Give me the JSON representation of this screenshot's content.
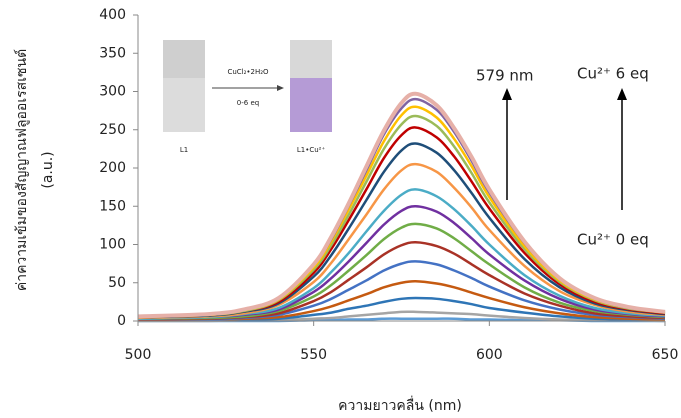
{
  "chart_data": {
    "type": "line",
    "y_label": [
      "ค่าความเข้มของสัญญาณฟลูออเรสเซนต์",
      "(a.u.)"
    ],
    "x_label": "ความยาวคลื่น (nm)",
    "x": [
      500,
      520,
      530,
      540,
      550,
      555,
      560,
      565,
      570,
      575,
      579,
      585,
      590,
      595,
      600,
      610,
      620,
      630,
      640,
      650
    ],
    "xlim": [
      500,
      650
    ],
    "xticks": [
      500,
      550,
      600,
      650
    ],
    "ylim": [
      0,
      400
    ],
    "yticks": [
      0,
      50,
      100,
      150,
      200,
      250,
      300,
      350,
      400
    ],
    "annotations": [
      "579 nm",
      "Cu²⁺ 6 eq",
      "Cu²⁺ 0 eq"
    ],
    "inset": {
      "reagent": "CuCl₂•2H₂O",
      "range": "0-6 eq",
      "left": "L1",
      "right": "L1•Cu²⁺"
    },
    "series": [
      {
        "color": "#5b9bd5",
        "values": [
          0,
          0,
          0,
          0,
          1,
          1,
          2,
          2,
          3,
          3,
          3,
          3,
          3,
          2,
          2,
          1,
          1,
          0,
          0,
          0
        ]
      },
      {
        "color": "#a5a5a5",
        "values": [
          0,
          0,
          1,
          1,
          3,
          4,
          6,
          8,
          10,
          12,
          12,
          11,
          10,
          9,
          7,
          4,
          2,
          1,
          1,
          0
        ]
      },
      {
        "color": "#2e75b6",
        "values": [
          1,
          1,
          2,
          3,
          8,
          11,
          16,
          20,
          25,
          29,
          30,
          29,
          26,
          22,
          17,
          11,
          6,
          3,
          2,
          1
        ]
      },
      {
        "color": "#c55a11",
        "values": [
          1,
          2,
          3,
          5,
          13,
          19,
          27,
          35,
          44,
          50,
          52,
          49,
          44,
          37,
          30,
          18,
          10,
          5,
          3,
          2
        ]
      },
      {
        "color": "#4472c4",
        "values": [
          2,
          2,
          4,
          8,
          20,
          29,
          41,
          53,
          66,
          75,
          78,
          74,
          66,
          56,
          45,
          27,
          15,
          8,
          5,
          3
        ]
      },
      {
        "color": "#a93226",
        "values": [
          2,
          3,
          5,
          10,
          26,
          38,
          54,
          70,
          87,
          99,
          103,
          98,
          88,
          74,
          60,
          36,
          20,
          10,
          6,
          4
        ]
      },
      {
        "color": "#70ad47",
        "values": [
          3,
          4,
          6,
          13,
          32,
          47,
          66,
          86,
          107,
          122,
          127,
          121,
          108,
          91,
          74,
          44,
          24,
          13,
          8,
          5
        ]
      },
      {
        "color": "#7030a0",
        "values": [
          3,
          5,
          8,
          15,
          38,
          56,
          78,
          102,
          126,
          144,
          150,
          143,
          128,
          108,
          87,
          53,
          29,
          15,
          9,
          6
        ]
      },
      {
        "color": "#4bacc6",
        "values": [
          3,
          5,
          9,
          17,
          43,
          64,
          89,
          117,
          144,
          165,
          172,
          163,
          146,
          124,
          100,
          60,
          33,
          17,
          10,
          7
        ]
      },
      {
        "color": "#f79646",
        "values": [
          4,
          6,
          10,
          21,
          51,
          76,
          107,
          139,
          172,
          197,
          205,
          195,
          174,
          148,
          119,
          72,
          39,
          21,
          12,
          8
        ]
      },
      {
        "color": "#1f4e79",
        "values": [
          5,
          7,
          12,
          23,
          58,
          86,
          121,
          158,
          195,
          223,
          232,
          220,
          197,
          167,
          135,
          81,
          44,
          23,
          14,
          9
        ]
      },
      {
        "color": "#c00000",
        "values": [
          5,
          8,
          13,
          25,
          63,
          94,
          132,
          172,
          213,
          243,
          253,
          240,
          215,
          182,
          147,
          89,
          48,
          25,
          15,
          10
        ]
      },
      {
        "color": "#9bbb59",
        "values": [
          5,
          8,
          13,
          27,
          67,
          99,
          139,
          182,
          225,
          257,
          268,
          255,
          228,
          193,
          155,
          94,
          51,
          27,
          16,
          11
        ]
      },
      {
        "color": "#ffc000",
        "values": [
          6,
          8,
          14,
          28,
          70,
          104,
          146,
          190,
          235,
          269,
          280,
          266,
          238,
          202,
          162,
          98,
          53,
          28,
          17,
          11
        ]
      },
      {
        "color": "#8064a2",
        "values": [
          6,
          9,
          15,
          29,
          73,
          107,
          151,
          197,
          244,
          278,
          290,
          276,
          247,
          209,
          168,
          102,
          55,
          29,
          17,
          12
        ]
      },
      {
        "color": "#e6b0a8",
        "values": [
          6,
          9,
          15,
          30,
          74,
          110,
          154,
          202,
          249,
          285,
          297,
          282,
          252,
          214,
          172,
          104,
          56,
          30,
          18,
          12
        ]
      }
    ]
  }
}
